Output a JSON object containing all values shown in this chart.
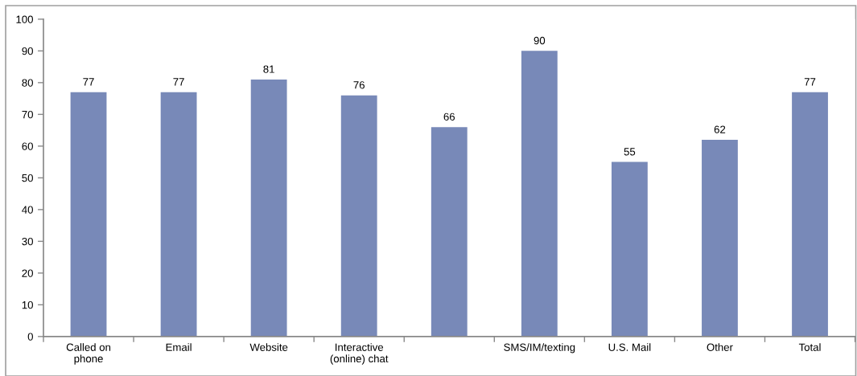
{
  "chart_data": {
    "type": "bar",
    "categories": [
      "Called on\nphone",
      "Email",
      "Website",
      "Interactive\n(online) chat",
      null,
      "SMS/IM/texting",
      "U.S. Mail",
      "Other",
      "Total"
    ],
    "values": [
      77,
      77,
      81,
      76,
      66,
      90,
      55,
      62,
      77
    ],
    "color": "#7889b8",
    "ylim": [
      0,
      100
    ],
    "yticks": [
      0,
      10,
      20,
      30,
      40,
      50,
      60,
      70,
      80,
      90,
      100
    ],
    "data_labels": true,
    "grid": false,
    "legend": false
  }
}
